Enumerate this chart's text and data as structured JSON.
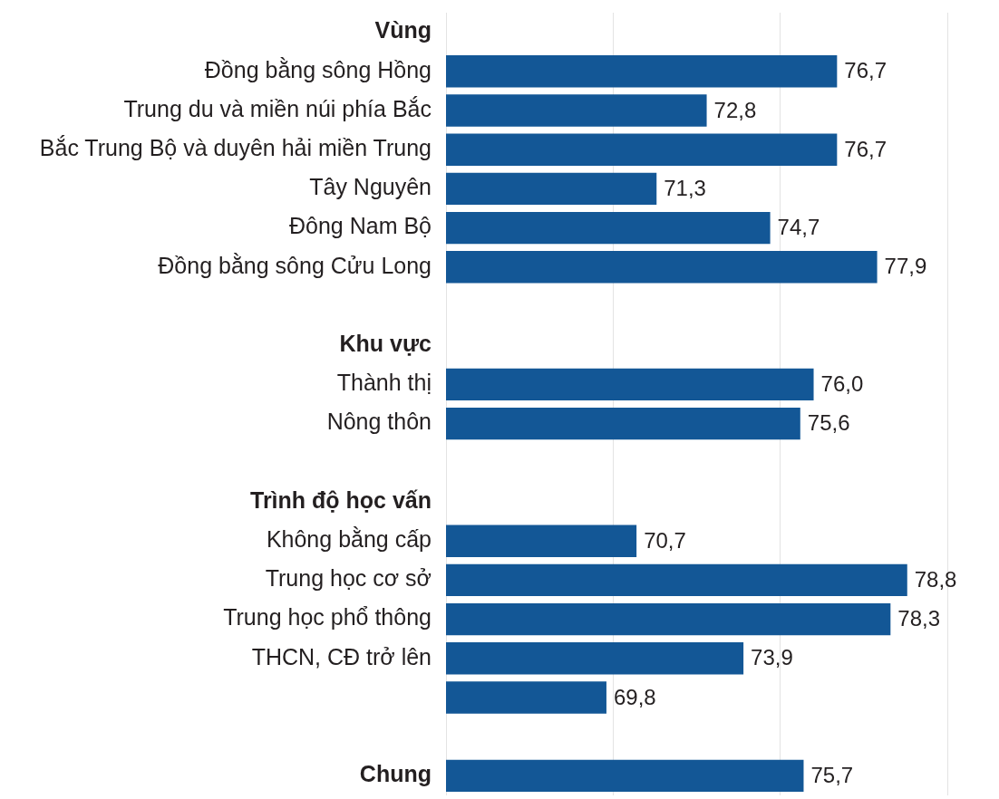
{
  "chart_data": {
    "type": "bar",
    "orientation": "horizontal",
    "categories": [
      "Vùng",
      "Đồng bằng sông Hồng",
      "Trung du và miền núi phía Bắc",
      "Bắc Trung Bộ và duyên hải miền Trung",
      "Tây Nguyên",
      "Đông Nam Bộ",
      "Đồng bằng sông Cửu Long",
      null,
      "Khu vực",
      "Thành thị",
      "Nông thôn",
      null,
      "Trình độ học vấn",
      "Không bằng cấp",
      "Trung học cơ sở",
      "Trung học phổ thông",
      "THCN, CĐ trở lên",
      null,
      null,
      "Chung"
    ],
    "values": [
      null,
      76.7,
      72.8,
      76.7,
      71.3,
      74.7,
      77.9,
      null,
      null,
      76.0,
      75.6,
      null,
      null,
      70.7,
      78.8,
      78.3,
      73.9,
      69.8,
      null,
      75.7
    ],
    "value_labels": [
      null,
      "76,7",
      "72,8",
      "76,7",
      "71,3",
      "74,7",
      "77,9",
      null,
      null,
      "76,0",
      "75,6",
      null,
      null,
      "70,7",
      "78,8",
      "78,3",
      "73,9",
      "69,8",
      null,
      "75,7"
    ],
    "color": "#135796",
    "xlim": [
      65,
      80
    ],
    "xticks": [
      {
        "value": 65,
        "label": null
      },
      {
        "value": 70,
        "label": null
      },
      {
        "value": 75,
        "label": null
      },
      {
        "value": 80,
        "label": null
      }
    ],
    "grid": "x",
    "tick_labels": "y"
  }
}
